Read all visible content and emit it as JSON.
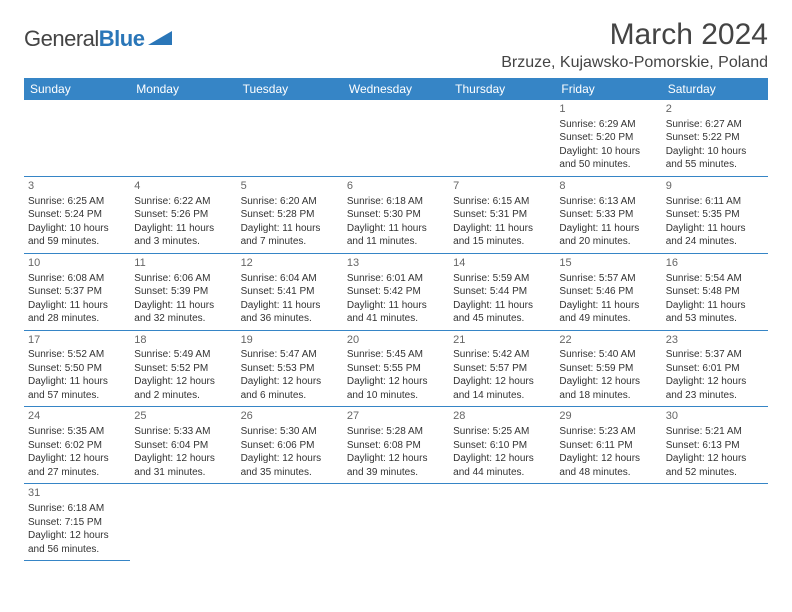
{
  "logo": {
    "text1": "General",
    "text2": "Blue"
  },
  "title": "March 2024",
  "location": "Brzuze, Kujawsko-Pomorskie, Poland",
  "colors": {
    "header_bg": "#3685c6",
    "header_text": "#ffffff",
    "border": "#3685c6",
    "body_text": "#333333"
  },
  "dayNames": [
    "Sunday",
    "Monday",
    "Tuesday",
    "Wednesday",
    "Thursday",
    "Friday",
    "Saturday"
  ],
  "weeks": [
    [
      null,
      null,
      null,
      null,
      null,
      {
        "d": "1",
        "sr": "Sunrise: 6:29 AM",
        "ss": "Sunset: 5:20 PM",
        "dl1": "Daylight: 10 hours",
        "dl2": "and 50 minutes."
      },
      {
        "d": "2",
        "sr": "Sunrise: 6:27 AM",
        "ss": "Sunset: 5:22 PM",
        "dl1": "Daylight: 10 hours",
        "dl2": "and 55 minutes."
      }
    ],
    [
      {
        "d": "3",
        "sr": "Sunrise: 6:25 AM",
        "ss": "Sunset: 5:24 PM",
        "dl1": "Daylight: 10 hours",
        "dl2": "and 59 minutes."
      },
      {
        "d": "4",
        "sr": "Sunrise: 6:22 AM",
        "ss": "Sunset: 5:26 PM",
        "dl1": "Daylight: 11 hours",
        "dl2": "and 3 minutes."
      },
      {
        "d": "5",
        "sr": "Sunrise: 6:20 AM",
        "ss": "Sunset: 5:28 PM",
        "dl1": "Daylight: 11 hours",
        "dl2": "and 7 minutes."
      },
      {
        "d": "6",
        "sr": "Sunrise: 6:18 AM",
        "ss": "Sunset: 5:30 PM",
        "dl1": "Daylight: 11 hours",
        "dl2": "and 11 minutes."
      },
      {
        "d": "7",
        "sr": "Sunrise: 6:15 AM",
        "ss": "Sunset: 5:31 PM",
        "dl1": "Daylight: 11 hours",
        "dl2": "and 15 minutes."
      },
      {
        "d": "8",
        "sr": "Sunrise: 6:13 AM",
        "ss": "Sunset: 5:33 PM",
        "dl1": "Daylight: 11 hours",
        "dl2": "and 20 minutes."
      },
      {
        "d": "9",
        "sr": "Sunrise: 6:11 AM",
        "ss": "Sunset: 5:35 PM",
        "dl1": "Daylight: 11 hours",
        "dl2": "and 24 minutes."
      }
    ],
    [
      {
        "d": "10",
        "sr": "Sunrise: 6:08 AM",
        "ss": "Sunset: 5:37 PM",
        "dl1": "Daylight: 11 hours",
        "dl2": "and 28 minutes."
      },
      {
        "d": "11",
        "sr": "Sunrise: 6:06 AM",
        "ss": "Sunset: 5:39 PM",
        "dl1": "Daylight: 11 hours",
        "dl2": "and 32 minutes."
      },
      {
        "d": "12",
        "sr": "Sunrise: 6:04 AM",
        "ss": "Sunset: 5:41 PM",
        "dl1": "Daylight: 11 hours",
        "dl2": "and 36 minutes."
      },
      {
        "d": "13",
        "sr": "Sunrise: 6:01 AM",
        "ss": "Sunset: 5:42 PM",
        "dl1": "Daylight: 11 hours",
        "dl2": "and 41 minutes."
      },
      {
        "d": "14",
        "sr": "Sunrise: 5:59 AM",
        "ss": "Sunset: 5:44 PM",
        "dl1": "Daylight: 11 hours",
        "dl2": "and 45 minutes."
      },
      {
        "d": "15",
        "sr": "Sunrise: 5:57 AM",
        "ss": "Sunset: 5:46 PM",
        "dl1": "Daylight: 11 hours",
        "dl2": "and 49 minutes."
      },
      {
        "d": "16",
        "sr": "Sunrise: 5:54 AM",
        "ss": "Sunset: 5:48 PM",
        "dl1": "Daylight: 11 hours",
        "dl2": "and 53 minutes."
      }
    ],
    [
      {
        "d": "17",
        "sr": "Sunrise: 5:52 AM",
        "ss": "Sunset: 5:50 PM",
        "dl1": "Daylight: 11 hours",
        "dl2": "and 57 minutes."
      },
      {
        "d": "18",
        "sr": "Sunrise: 5:49 AM",
        "ss": "Sunset: 5:52 PM",
        "dl1": "Daylight: 12 hours",
        "dl2": "and 2 minutes."
      },
      {
        "d": "19",
        "sr": "Sunrise: 5:47 AM",
        "ss": "Sunset: 5:53 PM",
        "dl1": "Daylight: 12 hours",
        "dl2": "and 6 minutes."
      },
      {
        "d": "20",
        "sr": "Sunrise: 5:45 AM",
        "ss": "Sunset: 5:55 PM",
        "dl1": "Daylight: 12 hours",
        "dl2": "and 10 minutes."
      },
      {
        "d": "21",
        "sr": "Sunrise: 5:42 AM",
        "ss": "Sunset: 5:57 PM",
        "dl1": "Daylight: 12 hours",
        "dl2": "and 14 minutes."
      },
      {
        "d": "22",
        "sr": "Sunrise: 5:40 AM",
        "ss": "Sunset: 5:59 PM",
        "dl1": "Daylight: 12 hours",
        "dl2": "and 18 minutes."
      },
      {
        "d": "23",
        "sr": "Sunrise: 5:37 AM",
        "ss": "Sunset: 6:01 PM",
        "dl1": "Daylight: 12 hours",
        "dl2": "and 23 minutes."
      }
    ],
    [
      {
        "d": "24",
        "sr": "Sunrise: 5:35 AM",
        "ss": "Sunset: 6:02 PM",
        "dl1": "Daylight: 12 hours",
        "dl2": "and 27 minutes."
      },
      {
        "d": "25",
        "sr": "Sunrise: 5:33 AM",
        "ss": "Sunset: 6:04 PM",
        "dl1": "Daylight: 12 hours",
        "dl2": "and 31 minutes."
      },
      {
        "d": "26",
        "sr": "Sunrise: 5:30 AM",
        "ss": "Sunset: 6:06 PM",
        "dl1": "Daylight: 12 hours",
        "dl2": "and 35 minutes."
      },
      {
        "d": "27",
        "sr": "Sunrise: 5:28 AM",
        "ss": "Sunset: 6:08 PM",
        "dl1": "Daylight: 12 hours",
        "dl2": "and 39 minutes."
      },
      {
        "d": "28",
        "sr": "Sunrise: 5:25 AM",
        "ss": "Sunset: 6:10 PM",
        "dl1": "Daylight: 12 hours",
        "dl2": "and 44 minutes."
      },
      {
        "d": "29",
        "sr": "Sunrise: 5:23 AM",
        "ss": "Sunset: 6:11 PM",
        "dl1": "Daylight: 12 hours",
        "dl2": "and 48 minutes."
      },
      {
        "d": "30",
        "sr": "Sunrise: 5:21 AM",
        "ss": "Sunset: 6:13 PM",
        "dl1": "Daylight: 12 hours",
        "dl2": "and 52 minutes."
      }
    ],
    [
      {
        "d": "31",
        "sr": "Sunrise: 6:18 AM",
        "ss": "Sunset: 7:15 PM",
        "dl1": "Daylight: 12 hours",
        "dl2": "and 56 minutes."
      },
      null,
      null,
      null,
      null,
      null,
      null
    ]
  ]
}
